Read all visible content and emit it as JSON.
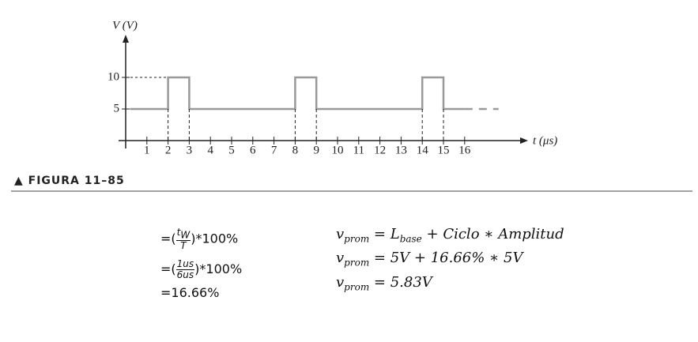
{
  "chart_data": {
    "type": "line",
    "ylabel": "V (V)",
    "xlabel": "t (μs)",
    "series": [
      {
        "color": "#999999",
        "x": [
          0.2,
          2,
          2,
          3,
          3,
          8,
          8,
          9,
          9,
          14,
          14,
          15,
          15,
          16
        ],
        "values": [
          5,
          5,
          10,
          10,
          5,
          5,
          10,
          10,
          5,
          5,
          10,
          10,
          5,
          5
        ]
      },
      {
        "color": "#999999",
        "dashed": true,
        "x": [
          16,
          17.6
        ],
        "values": [
          5,
          5
        ]
      }
    ],
    "xlim": [
      0,
      19
    ],
    "ylim": [
      0,
      16.5
    ],
    "xticks": [
      1,
      2,
      3,
      4,
      5,
      6,
      7,
      8,
      9,
      10,
      11,
      12,
      13,
      14,
      15,
      16
    ],
    "yticks": [
      5,
      10
    ]
  },
  "figure_caption": "▲ FIGURA 11–85",
  "formulas_left": [
    {
      "prefix": "=(",
      "num": [
        "t",
        "W"
      ],
      "den": [
        "T"
      ],
      "suffix": ")*100%"
    },
    {
      "prefix": "=(",
      "num": [
        "1us"
      ],
      "den": [
        "6us"
      ],
      "suffix": ")*100%"
    },
    {
      "prefix": "=16.66%"
    }
  ],
  "formulas_right": [
    [
      "v",
      "prom",
      " = L",
      "base",
      " + Ciclo ∗ Amplitud"
    ],
    [
      "v",
      "prom",
      " = 5V + 16.66% ∗ 5V"
    ],
    [
      "v",
      "prom",
      " = 5.83V"
    ]
  ]
}
